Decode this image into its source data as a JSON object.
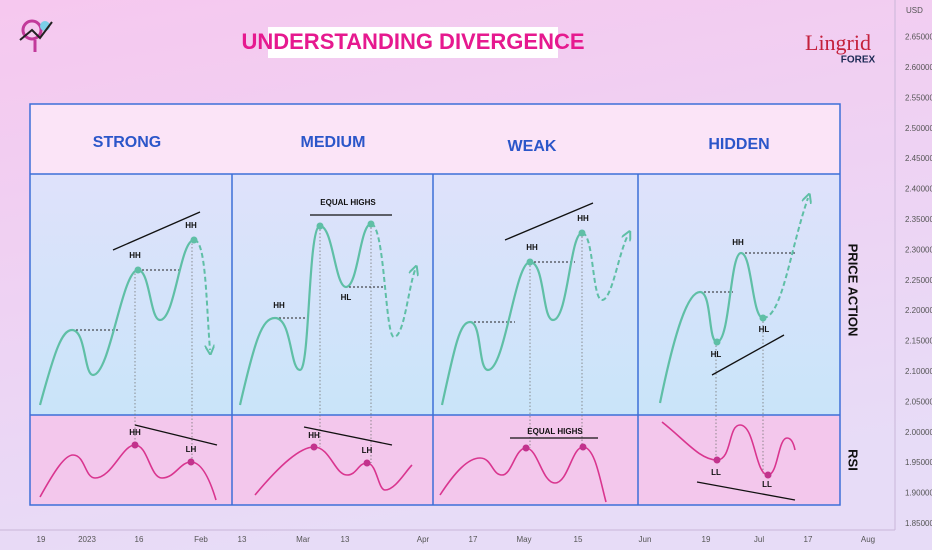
{
  "header": {
    "title": "UNDERSTANDING DIVERGENCE",
    "logo": "Lingrid",
    "logo_sub": "FOREX"
  },
  "columns": [
    "STRONG",
    "MEDIUM",
    "WEAK",
    "HIDDEN"
  ],
  "rows": [
    "PRICE ACTION",
    "RSI"
  ],
  "panels": [
    {
      "price": [
        "HH",
        "HH"
      ],
      "rsi": [
        "HH",
        "LH"
      ]
    },
    {
      "price": [
        "EQUAL HIGHS",
        "HH",
        "HL"
      ],
      "rsi": [
        "HH",
        "LH"
      ]
    },
    {
      "price": [
        "HH",
        "HH"
      ],
      "rsi": [
        "EQUAL HIGHS"
      ]
    },
    {
      "price": [
        "HH",
        "HL",
        "HL"
      ],
      "rsi": [
        "LL",
        "LL"
      ]
    }
  ],
  "price_axis": {
    "unit": "USD",
    "labels": [
      "2.65000",
      "2.60000",
      "2.55000",
      "2.50000",
      "2.45000",
      "2.40000",
      "2.35000",
      "2.30000",
      "2.25000",
      "2.20000",
      "2.15000",
      "2.10000",
      "2.05000",
      "2.00000",
      "1.95000",
      "1.90000",
      "1.85000"
    ]
  },
  "time_axis": {
    "labels": [
      "19",
      "2023",
      "16",
      "Feb",
      "13",
      "Mar",
      "13",
      "Apr",
      "17",
      "May",
      "15",
      "Jun",
      "19",
      "Jul",
      "17",
      "Aug"
    ]
  }
}
